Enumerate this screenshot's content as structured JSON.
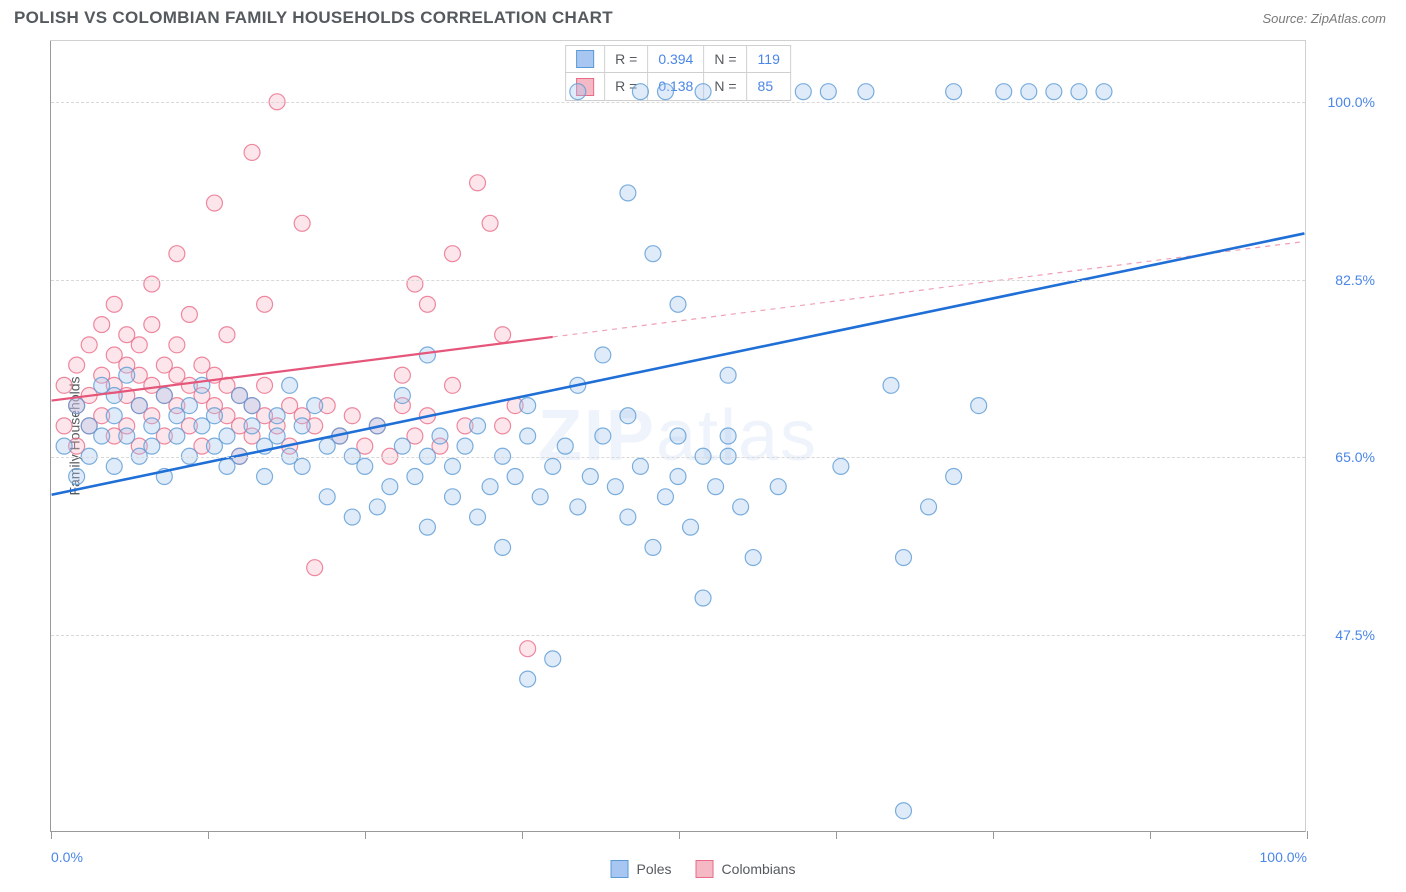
{
  "title": "POLISH VS COLOMBIAN FAMILY HOUSEHOLDS CORRELATION CHART",
  "source": "Source: ZipAtlas.com",
  "watermark": "ZIPatlas",
  "ylabel": "Family Households",
  "chart": {
    "type": "scatter",
    "xlim": [
      0,
      100
    ],
    "ylim": [
      28,
      106
    ],
    "xtick_positions": [
      0,
      12.5,
      25,
      37.5,
      50,
      62.5,
      75,
      87.5,
      100
    ],
    "xtick_labels_visible": {
      "0": "0.0%",
      "100": "100.0%"
    },
    "ytick_positions": [
      47.5,
      65.0,
      82.5,
      100.0
    ],
    "ytick_labels": [
      "47.5%",
      "65.0%",
      "82.5%",
      "100.0%"
    ],
    "ylabel_fontsize": 14,
    "tick_label_fontsize": 14,
    "tick_label_color": "#4a86e8",
    "grid_color": "#d8d8d8",
    "border_color": "#d0d0d0",
    "axis_color": "#999999",
    "background_color": "#ffffff",
    "marker_radius": 8,
    "marker_fill_opacity": 0.35,
    "marker_stroke_opacity": 0.8,
    "marker_stroke_width": 1.2,
    "series": {
      "poles": {
        "label": "Poles",
        "color_fill": "#a7c7f2",
        "color_stroke": "#5b9bd5",
        "trend_color": "#1f6fd6",
        "trend_width": 2.6,
        "trend_dash_color": "#1f6fd6",
        "R": "0.394",
        "N": "119",
        "trend": {
          "x1": 0,
          "y1": 61.2,
          "x2": 100,
          "y2": 87.0
        },
        "points": [
          [
            1,
            66
          ],
          [
            2,
            70
          ],
          [
            2,
            63
          ],
          [
            3,
            68
          ],
          [
            3,
            65
          ],
          [
            4,
            72
          ],
          [
            4,
            67
          ],
          [
            5,
            69
          ],
          [
            5,
            71
          ],
          [
            5,
            64
          ],
          [
            6,
            67
          ],
          [
            6,
            73
          ],
          [
            7,
            65
          ],
          [
            7,
            70
          ],
          [
            8,
            68
          ],
          [
            8,
            66
          ],
          [
            9,
            71
          ],
          [
            9,
            63
          ],
          [
            10,
            69
          ],
          [
            10,
            67
          ],
          [
            11,
            65
          ],
          [
            11,
            70
          ],
          [
            12,
            68
          ],
          [
            12,
            72
          ],
          [
            13,
            66
          ],
          [
            13,
            69
          ],
          [
            14,
            64
          ],
          [
            14,
            67
          ],
          [
            15,
            71
          ],
          [
            15,
            65
          ],
          [
            16,
            68
          ],
          [
            16,
            70
          ],
          [
            17,
            66
          ],
          [
            17,
            63
          ],
          [
            18,
            69
          ],
          [
            18,
            67
          ],
          [
            19,
            65
          ],
          [
            19,
            72
          ],
          [
            20,
            68
          ],
          [
            20,
            64
          ],
          [
            21,
            70
          ],
          [
            22,
            66
          ],
          [
            22,
            61
          ],
          [
            23,
            67
          ],
          [
            24,
            65
          ],
          [
            24,
            59
          ],
          [
            25,
            64
          ],
          [
            26,
            68
          ],
          [
            26,
            60
          ],
          [
            27,
            62
          ],
          [
            28,
            66
          ],
          [
            28,
            71
          ],
          [
            29,
            63
          ],
          [
            30,
            65
          ],
          [
            30,
            58
          ],
          [
            31,
            67
          ],
          [
            32,
            64
          ],
          [
            32,
            61
          ],
          [
            33,
            66
          ],
          [
            34,
            59
          ],
          [
            34,
            68
          ],
          [
            35,
            62
          ],
          [
            36,
            65
          ],
          [
            36,
            56
          ],
          [
            37,
            63
          ],
          [
            38,
            43
          ],
          [
            38,
            67
          ],
          [
            39,
            61
          ],
          [
            40,
            45
          ],
          [
            40,
            64
          ],
          [
            41,
            66
          ],
          [
            42,
            60
          ],
          [
            42,
            101
          ],
          [
            43,
            63
          ],
          [
            44,
            75
          ],
          [
            44,
            67
          ],
          [
            45,
            62
          ],
          [
            46,
            59
          ],
          [
            46,
            91
          ],
          [
            47,
            64
          ],
          [
            47,
            101
          ],
          [
            48,
            56
          ],
          [
            48,
            85
          ],
          [
            49,
            61
          ],
          [
            49,
            101
          ],
          [
            50,
            63
          ],
          [
            50,
            80
          ],
          [
            51,
            58
          ],
          [
            52,
            65
          ],
          [
            52,
            101
          ],
          [
            53,
            62
          ],
          [
            54,
            67
          ],
          [
            54,
            73
          ],
          [
            55,
            60
          ],
          [
            56,
            55
          ],
          [
            58,
            62
          ],
          [
            60,
            101
          ],
          [
            62,
            101
          ],
          [
            63,
            64
          ],
          [
            65,
            101
          ],
          [
            67,
            72
          ],
          [
            68,
            55
          ],
          [
            70,
            60
          ],
          [
            72,
            101
          ],
          [
            74,
            70
          ],
          [
            76,
            101
          ],
          [
            78,
            101
          ],
          [
            80,
            101
          ],
          [
            82,
            101
          ],
          [
            84,
            101
          ],
          [
            68,
            30
          ],
          [
            72,
            63
          ],
          [
            52,
            51
          ],
          [
            30,
            75
          ],
          [
            38,
            70
          ],
          [
            42,
            72
          ],
          [
            46,
            69
          ],
          [
            50,
            67
          ],
          [
            54,
            65
          ]
        ]
      },
      "colombians": {
        "label": "Colombians",
        "color_fill": "#f5b8c5",
        "color_stroke": "#ea6b88",
        "trend_color": "#e5567a",
        "trend_width": 2.2,
        "trend_dash_color": "#f0a0b5",
        "R": "0.138",
        "N": "85",
        "trend": {
          "x1": 0,
          "y1": 70.5,
          "x2": 100,
          "y2": 86.2
        },
        "trend_solid_until": 40,
        "points": [
          [
            1,
            72
          ],
          [
            1,
            68
          ],
          [
            2,
            74
          ],
          [
            2,
            70
          ],
          [
            2,
            66
          ],
          [
            3,
            76
          ],
          [
            3,
            71
          ],
          [
            3,
            68
          ],
          [
            4,
            73
          ],
          [
            4,
            78
          ],
          [
            4,
            69
          ],
          [
            5,
            72
          ],
          [
            5,
            75
          ],
          [
            5,
            67
          ],
          [
            5,
            80
          ],
          [
            6,
            71
          ],
          [
            6,
            74
          ],
          [
            6,
            68
          ],
          [
            6,
            77
          ],
          [
            7,
            73
          ],
          [
            7,
            70
          ],
          [
            7,
            76
          ],
          [
            7,
            66
          ],
          [
            8,
            72
          ],
          [
            8,
            78
          ],
          [
            8,
            69
          ],
          [
            8,
            82
          ],
          [
            9,
            71
          ],
          [
            9,
            74
          ],
          [
            9,
            67
          ],
          [
            10,
            73
          ],
          [
            10,
            76
          ],
          [
            10,
            70
          ],
          [
            10,
            85
          ],
          [
            11,
            72
          ],
          [
            11,
            68
          ],
          [
            11,
            79
          ],
          [
            12,
            71
          ],
          [
            12,
            74
          ],
          [
            12,
            66
          ],
          [
            13,
            70
          ],
          [
            13,
            73
          ],
          [
            13,
            90
          ],
          [
            14,
            69
          ],
          [
            14,
            72
          ],
          [
            14,
            77
          ],
          [
            15,
            68
          ],
          [
            15,
            71
          ],
          [
            15,
            65
          ],
          [
            16,
            70
          ],
          [
            16,
            67
          ],
          [
            16,
            95
          ],
          [
            17,
            69
          ],
          [
            17,
            72
          ],
          [
            17,
            80
          ],
          [
            18,
            68
          ],
          [
            18,
            100
          ],
          [
            19,
            70
          ],
          [
            19,
            66
          ],
          [
            20,
            69
          ],
          [
            20,
            88
          ],
          [
            21,
            68
          ],
          [
            21,
            54
          ],
          [
            22,
            70
          ],
          [
            23,
            67
          ],
          [
            24,
            69
          ],
          [
            25,
            66
          ],
          [
            26,
            68
          ],
          [
            27,
            65
          ],
          [
            28,
            70
          ],
          [
            29,
            67
          ],
          [
            29,
            82
          ],
          [
            30,
            69
          ],
          [
            30,
            80
          ],
          [
            31,
            66
          ],
          [
            32,
            85
          ],
          [
            33,
            68
          ],
          [
            34,
            92
          ],
          [
            35,
            88
          ],
          [
            36,
            77
          ],
          [
            37,
            70
          ],
          [
            38,
            46
          ],
          [
            28,
            73
          ],
          [
            32,
            72
          ],
          [
            36,
            68
          ]
        ]
      }
    }
  },
  "legend_top": {
    "r_label": "R =",
    "n_label": "N ="
  },
  "legend_bottom": {
    "items": [
      "poles",
      "colombians"
    ]
  }
}
